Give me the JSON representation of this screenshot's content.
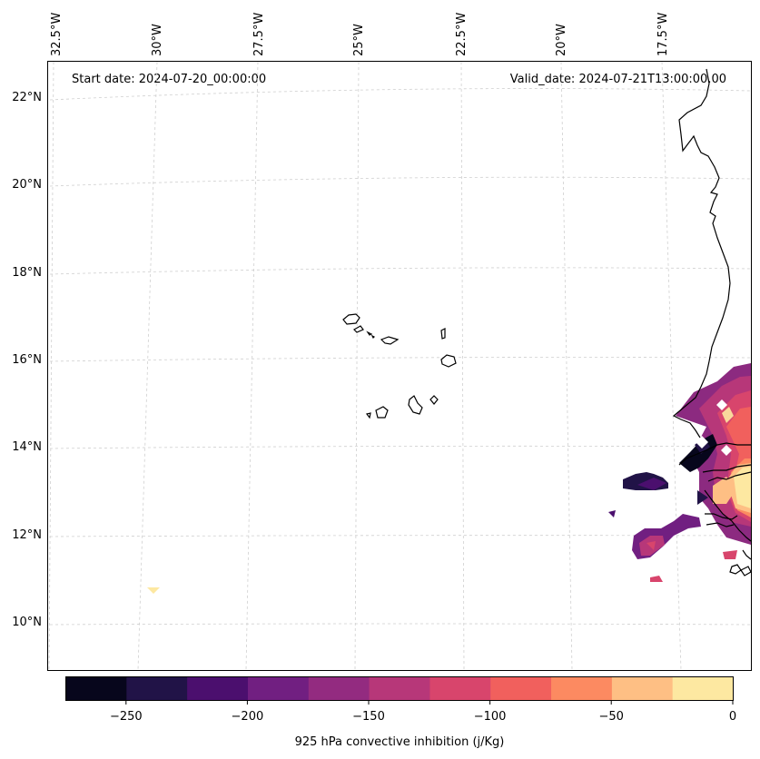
{
  "header": {
    "start_date": "Start date: 2024-07-20_00:00:00",
    "valid_date": "Valid_date: 2024-07-21T13:00:00.00"
  },
  "map": {
    "lon_labels": [
      "32.5°W",
      "30°W",
      "27.5°W",
      "25°W",
      "22.5°W",
      "20°W",
      "17.5°W"
    ],
    "lat_labels": [
      "22°N",
      "20°N",
      "18°N",
      "16°N",
      "14°N",
      "12°N",
      "10°N"
    ],
    "features": [
      "cape-verde-islands",
      "west-africa-coastline"
    ]
  },
  "colorbar": {
    "label": "925 hPa convective inhibition (j/Kg)",
    "ticks": [
      "−250",
      "−200",
      "−150",
      "−100",
      "−50",
      "0"
    ],
    "levels": [
      -275,
      -250,
      -225,
      -200,
      -175,
      -150,
      -125,
      -100,
      -75,
      -50,
      -25,
      0
    ],
    "colors": [
      "#07061c",
      "#211347",
      "#4b0f6e",
      "#711f81",
      "#932b80",
      "#b73779",
      "#d8456c",
      "#f1605d",
      "#fc8a61",
      "#febf84",
      "#fde8a1"
    ]
  }
}
